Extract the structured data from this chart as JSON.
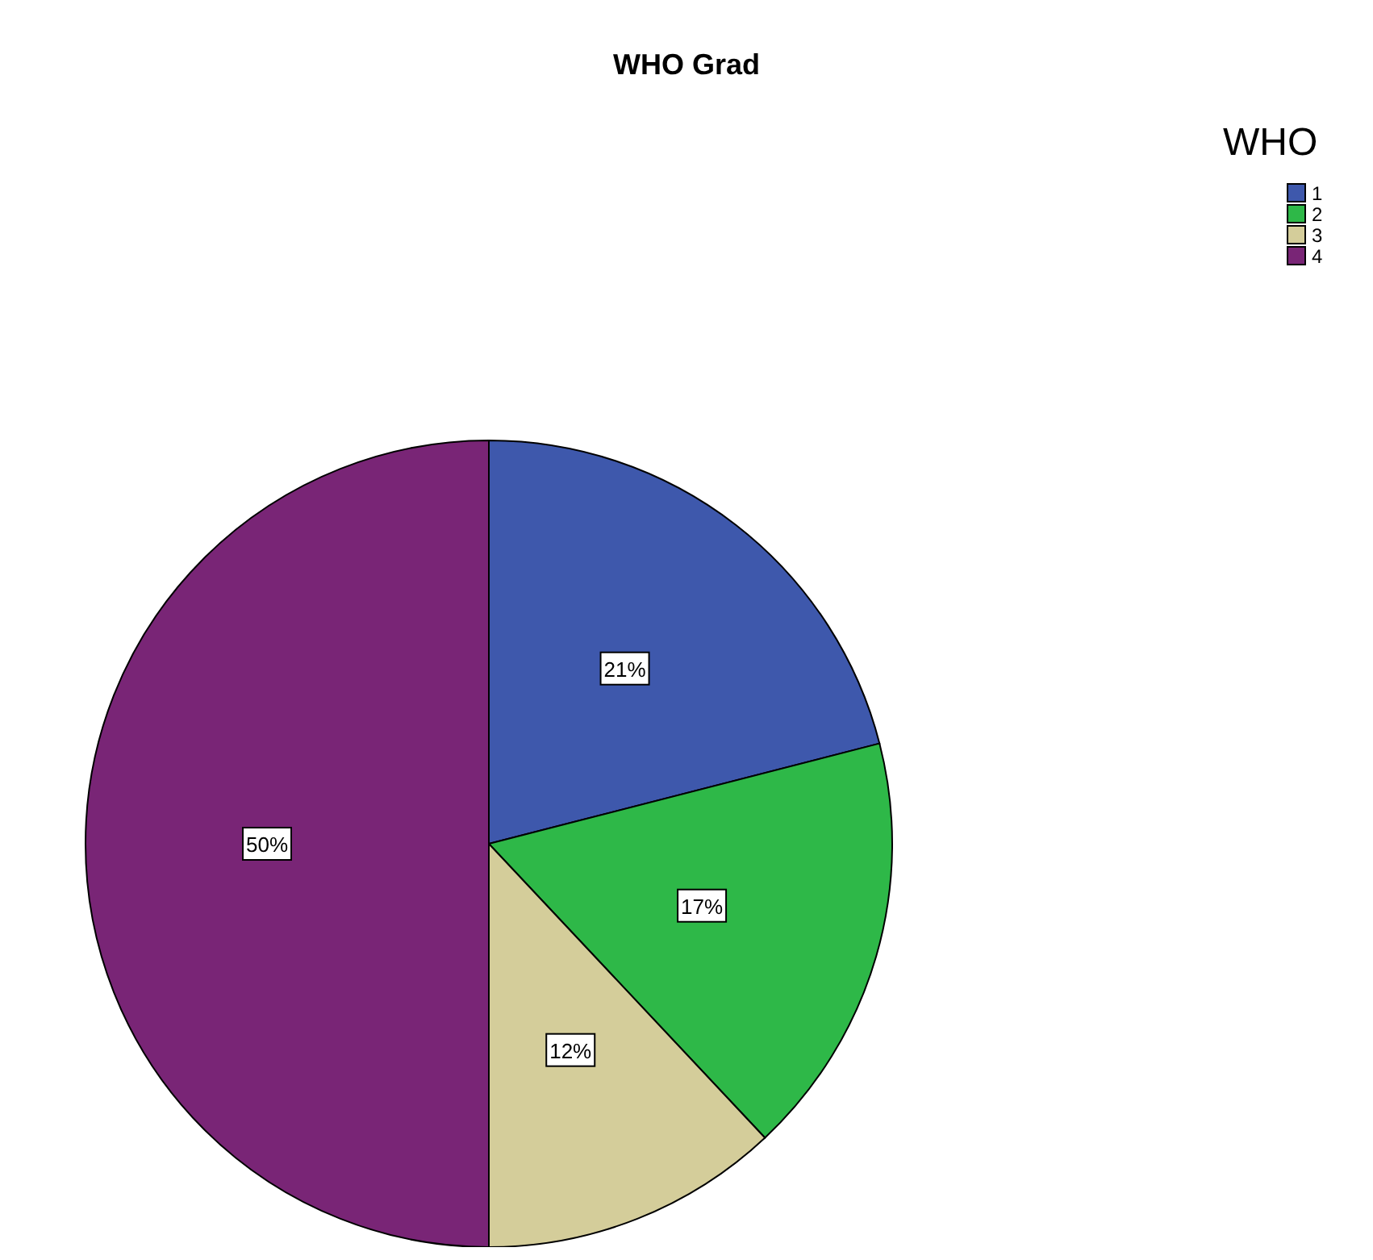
{
  "chart_data": {
    "type": "pie",
    "title": "WHO Grad",
    "legend_title": "WHO",
    "legend": "top right",
    "categories": [
      "1",
      "2",
      "3",
      "4"
    ],
    "values": [
      21,
      17,
      12,
      50
    ],
    "value_labels": [
      "21%",
      "17%",
      "12%",
      "50%"
    ],
    "colors": [
      "#3e58ac",
      "#2eb848",
      "#d4cd9a",
      "#792576"
    ]
  }
}
